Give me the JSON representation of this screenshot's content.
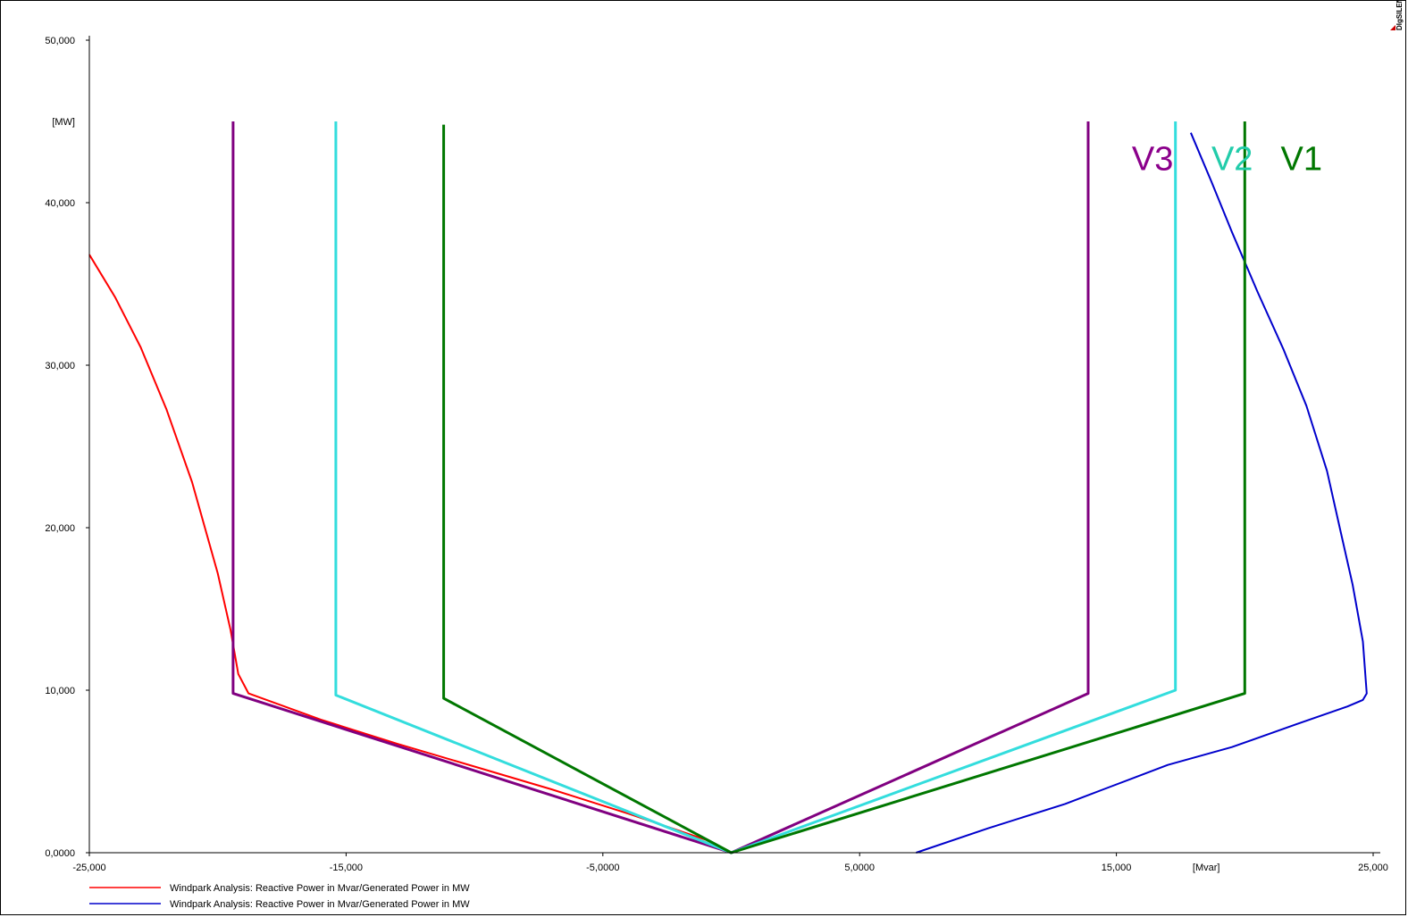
{
  "chart_data": {
    "type": "line",
    "title": "",
    "xlabel": "",
    "ylabel": "",
    "x_unit": "[Mvar]",
    "y_unit": "[MW]",
    "xlim": [
      -25000,
      25000
    ],
    "ylim": [
      0,
      50000
    ],
    "x_ticks": [
      "-25,000",
      "-15,000",
      "-5,0000",
      "5,0000",
      "15,000",
      "25,000"
    ],
    "x_tick_values": [
      -25000,
      -15000,
      -5000,
      5000,
      15000,
      25000
    ],
    "y_ticks": [
      "0,0000",
      "10,000",
      "20,000",
      "30,000",
      "40,000",
      "50,000"
    ],
    "y_tick_values": [
      0,
      10000,
      20000,
      30000,
      40000,
      50000
    ],
    "grid": false,
    "legend_position": "bottom-left",
    "logo_text": "DIgSILENT",
    "series": [
      {
        "name": "Windpark Analysis: Reactive Power in Mvar/Generated Power in MW",
        "color": "#ff0000",
        "in_legend": true,
        "x": [
          -25000,
          -24000,
          -23000,
          -22000,
          -21000,
          -20000,
          -19500,
          -19200,
          -18800,
          -16000,
          -13000,
          -10000,
          -7000,
          -4000,
          -1000,
          0
        ],
        "y": [
          36800,
          34200,
          31100,
          27300,
          22800,
          17200,
          13700,
          11000,
          9800,
          8200,
          6700,
          5300,
          3900,
          2400,
          800,
          0
        ]
      },
      {
        "name": "Windpark Analysis: Reactive Power in Mvar/Generated Power in MW",
        "color": "#0000cc",
        "in_legend": true,
        "x": [
          7200,
          10000,
          13000,
          14500,
          17000,
          19500,
          22000,
          24000,
          24600,
          24750,
          24600,
          24200,
          23700,
          23200,
          22400,
          21500,
          20500,
          19500,
          18700,
          17900
        ],
        "y": [
          0,
          1500,
          3000,
          3900,
          5400,
          6500,
          7900,
          9000,
          9400,
          9800,
          13000,
          16500,
          20000,
          23500,
          27500,
          31000,
          34500,
          38200,
          41300,
          44300
        ]
      },
      {
        "name": "V3",
        "color": "#800080",
        "in_legend": false,
        "x": [
          -19400,
          -19400,
          0,
          13900,
          13900
        ],
        "y": [
          45000,
          9800,
          0,
          9800,
          45000
        ]
      },
      {
        "name": "V2",
        "color": "#33dddd",
        "in_legend": false,
        "x": [
          -15400,
          -15400,
          0,
          17300,
          17300
        ],
        "y": [
          45000,
          9700,
          0,
          10000,
          45000
        ]
      },
      {
        "name": "V1",
        "color": "#007700",
        "in_legend": false,
        "x": [
          -11200,
          -11200,
          0,
          20000,
          20000
        ],
        "y": [
          44800,
          9500,
          0,
          9800,
          45000
        ]
      }
    ],
    "annotations": [
      {
        "text": "V3",
        "x": 15600,
        "y": 42000,
        "color": "#8b008b"
      },
      {
        "text": "V2",
        "x": 18700,
        "y": 42000,
        "color": "#22ccaa"
      },
      {
        "text": "V1",
        "x": 21400,
        "y": 42000,
        "color": "#007700"
      }
    ]
  }
}
